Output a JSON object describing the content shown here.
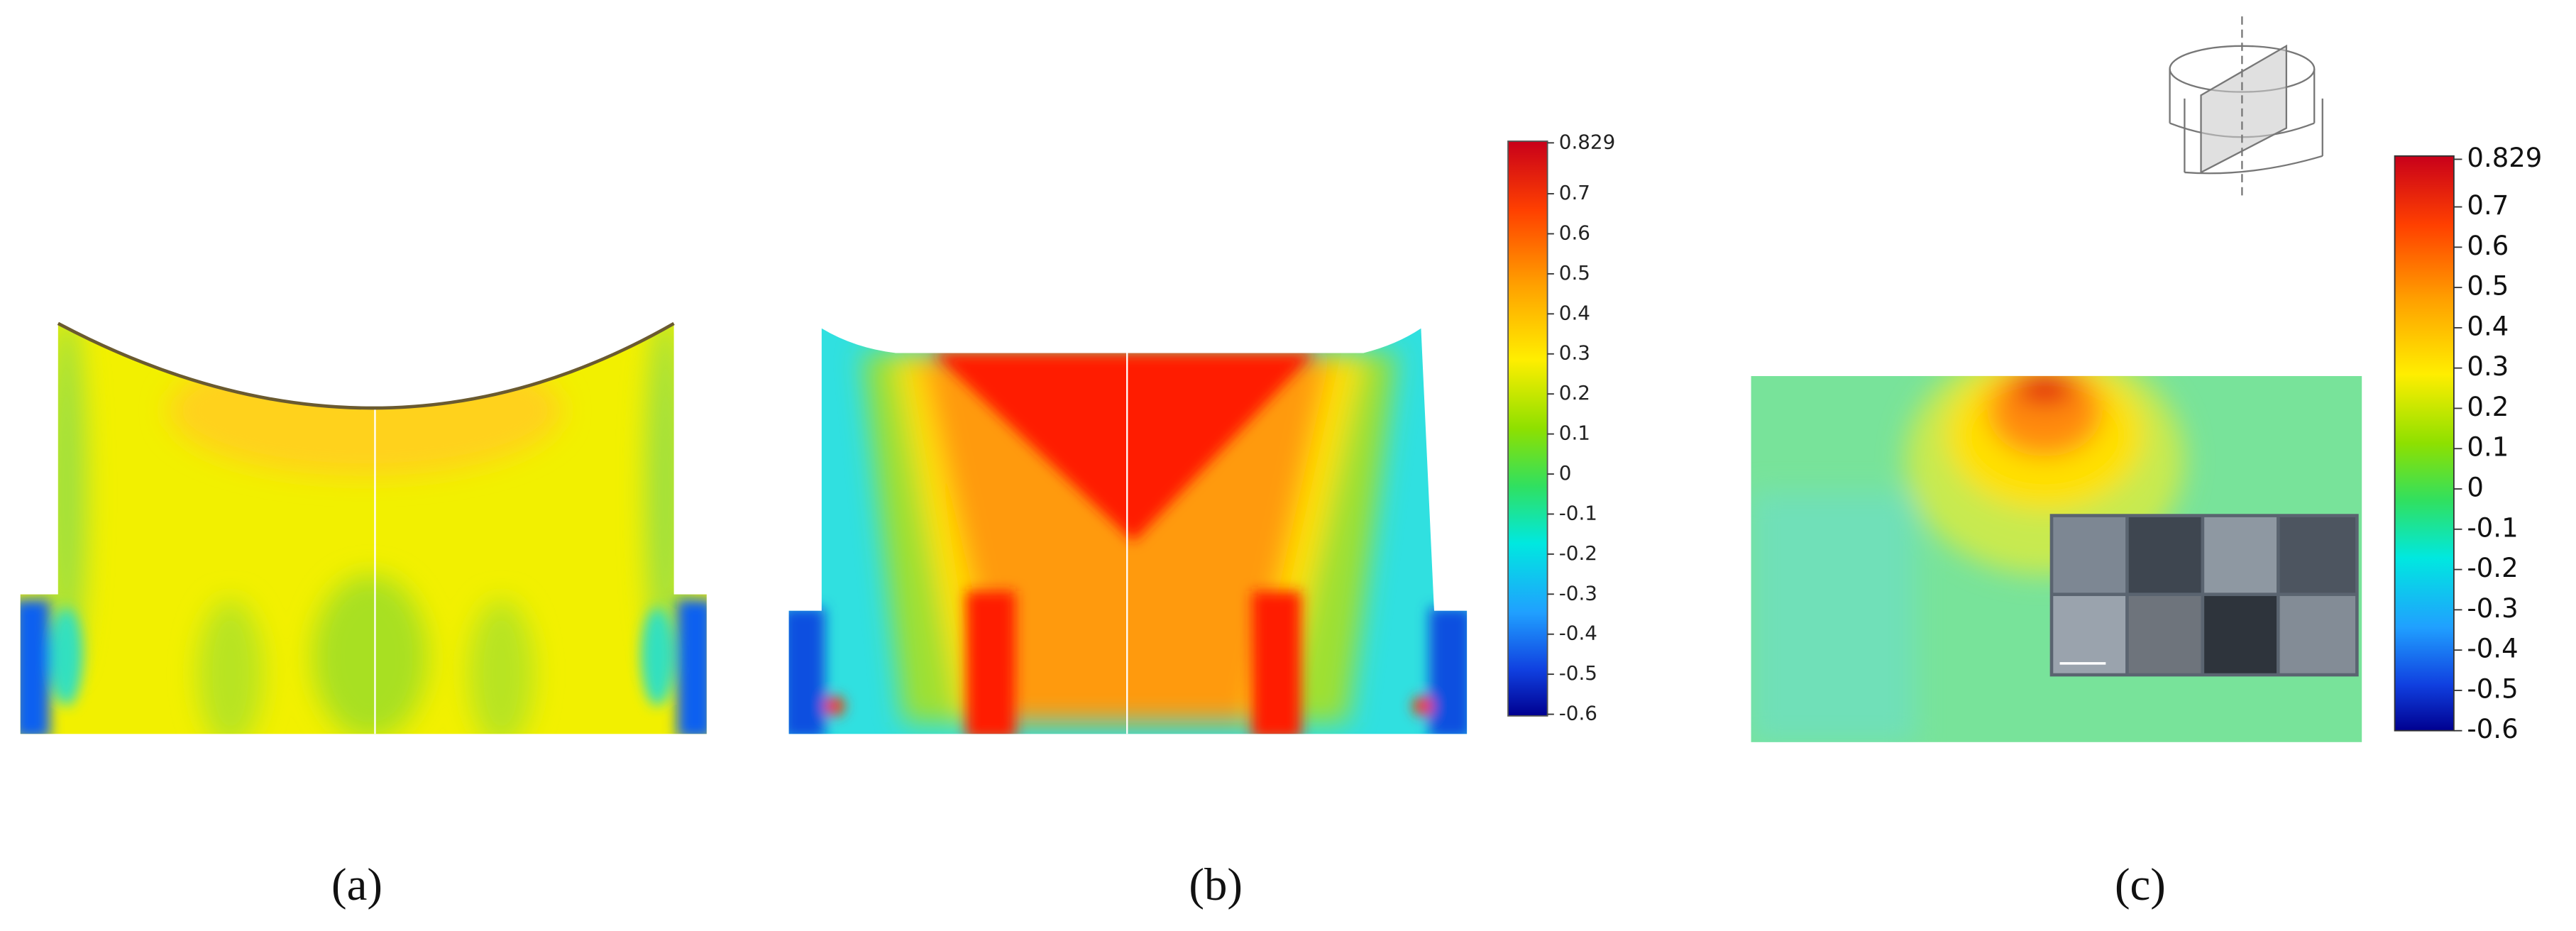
{
  "panels": [
    {
      "label": "(a)"
    },
    {
      "label": "(b)"
    },
    {
      "label": "(c)"
    }
  ],
  "colorbars": [
    {
      "labels": [
        "0.829",
        "0.7",
        "0.6",
        "0.5",
        "0.4",
        "0.3",
        "0.2",
        "0.1",
        "0",
        "-0.1",
        "-0.2",
        "-0.3",
        "-0.4",
        "-0.5",
        "-0.6"
      ]
    },
    {
      "labels": [
        "0.829",
        "0.7",
        "0.6",
        "0.5",
        "0.4",
        "0.3",
        "0.2",
        "0.1",
        "0",
        "-0.1",
        "-0.2",
        "-0.3",
        "-0.4",
        "-0.5",
        "-0.6"
      ]
    }
  ]
}
